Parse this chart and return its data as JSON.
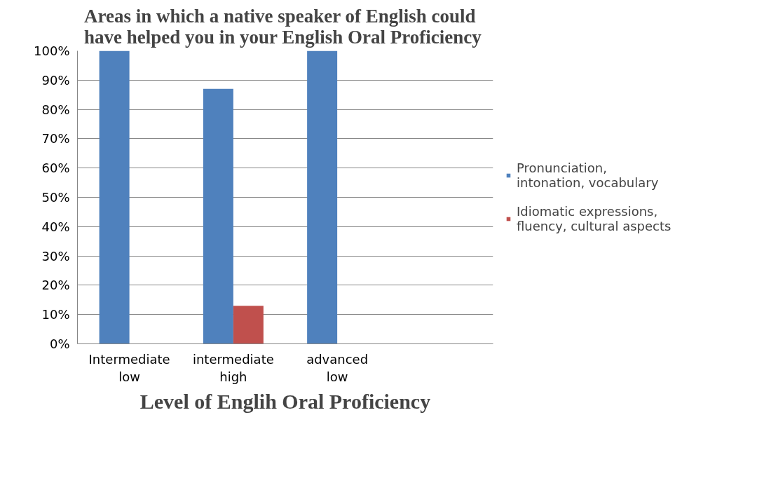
{
  "chart_data": {
    "type": "bar",
    "title": "Areas in which a native speaker of English could\nhave helped  you in your English Oral Proficiency",
    "xlabel": "Level of Englih Oral Proficiency",
    "categories": [
      "Intermediate\nlow",
      "intermediate\nhigh",
      "advanced\nlow",
      null
    ],
    "series": [
      {
        "name": "Pronunciation, intonation, vocabulary",
        "color": "#4f81bd",
        "values": [
          100,
          87,
          100,
          null
        ]
      },
      {
        "name": "Idiomatic expressions, fluency, cultural aspects",
        "color": "#c0504d",
        "values": [
          0,
          13,
          0,
          null
        ]
      }
    ],
    "ylim": [
      0,
      100
    ],
    "yticks": [
      {
        "value": 0,
        "label": "0%"
      },
      {
        "value": 10,
        "label": "10%"
      },
      {
        "value": 20,
        "label": "20%"
      },
      {
        "value": 30,
        "label": "30%"
      },
      {
        "value": 40,
        "label": "40%"
      },
      {
        "value": 50,
        "label": "50%"
      },
      {
        "value": 60,
        "label": "60%"
      },
      {
        "value": 70,
        "label": "70%"
      },
      {
        "value": 80,
        "label": "80%"
      },
      {
        "value": 90,
        "label": "90%"
      },
      {
        "value": 100,
        "label": "100%"
      }
    ],
    "grid": "y",
    "legend": "right"
  }
}
